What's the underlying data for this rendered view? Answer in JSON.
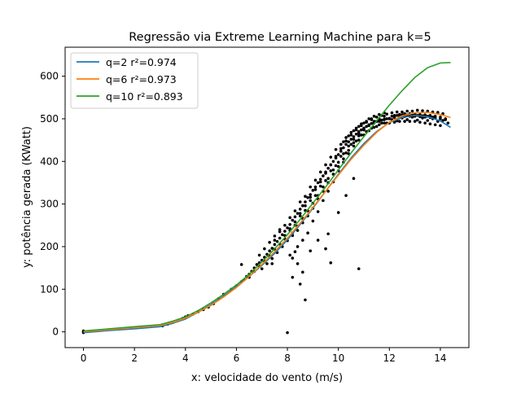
{
  "chart_data": {
    "type": "scatter",
    "title": "Regressão via Extreme Learning Machine para k=5",
    "xlabel": "x: velocidade do vento (m/s)",
    "ylabel": "y: potência gerada (KWatt)",
    "xlim": [
      -0.72,
      15.12
    ],
    "ylim": [
      -37,
      668
    ],
    "x_ticks": [
      0,
      2,
      4,
      6,
      8,
      10,
      12,
      14
    ],
    "y_ticks": [
      0,
      100,
      200,
      300,
      400,
      500,
      600
    ],
    "grid": false,
    "legend_position": "upper-left",
    "colors": {
      "scatter": "#000000",
      "q2": "#1f77b4",
      "q6": "#ff7f0e",
      "q10": "#2ca02c"
    },
    "scatter_points": [
      [
        0.0,
        -2
      ],
      [
        0.0,
        0
      ],
      [
        0.0,
        2
      ],
      [
        3.1,
        14
      ],
      [
        3.3,
        18
      ],
      [
        3.5,
        22
      ],
      [
        3.7,
        27
      ],
      [
        3.9,
        32
      ],
      [
        4.0,
        35
      ],
      [
        4.1,
        38
      ],
      [
        4.3,
        42
      ],
      [
        4.5,
        47
      ],
      [
        4.7,
        52
      ],
      [
        4.9,
        58
      ],
      [
        5.1,
        66
      ],
      [
        5.3,
        78
      ],
      [
        5.5,
        88
      ],
      [
        5.8,
        100
      ],
      [
        6.0,
        108
      ],
      [
        6.2,
        118
      ],
      [
        6.3,
        122
      ],
      [
        6.4,
        130
      ],
      [
        6.5,
        135
      ],
      [
        6.6,
        142
      ],
      [
        6.7,
        150
      ],
      [
        6.8,
        158
      ],
      [
        6.9,
        162
      ],
      [
        7.0,
        168
      ],
      [
        7.1,
        175
      ],
      [
        7.2,
        182
      ],
      [
        7.3,
        190
      ],
      [
        7.4,
        196
      ],
      [
        7.5,
        205
      ],
      [
        7.6,
        212
      ],
      [
        7.7,
        220
      ],
      [
        7.8,
        228
      ],
      [
        7.9,
        236
      ],
      [
        8.0,
        244
      ],
      [
        8.1,
        252
      ],
      [
        8.2,
        262
      ],
      [
        8.3,
        270
      ],
      [
        8.4,
        278
      ],
      [
        8.5,
        288
      ],
      [
        8.6,
        296
      ],
      [
        8.7,
        305
      ],
      [
        8.8,
        315
      ],
      [
        8.9,
        322
      ],
      [
        9.0,
        332
      ],
      [
        9.1,
        340
      ],
      [
        9.2,
        350
      ],
      [
        9.3,
        358
      ],
      [
        9.4,
        366
      ],
      [
        9.5,
        375
      ],
      [
        9.6,
        384
      ],
      [
        9.7,
        392
      ],
      [
        9.8,
        400
      ],
      [
        9.9,
        408
      ],
      [
        10.0,
        416
      ],
      [
        10.1,
        424
      ],
      [
        10.2,
        432
      ],
      [
        10.3,
        440
      ],
      [
        10.4,
        446
      ],
      [
        10.5,
        452
      ],
      [
        10.6,
        458
      ],
      [
        10.7,
        464
      ],
      [
        10.8,
        470
      ],
      [
        10.9,
        474
      ],
      [
        11.0,
        478
      ],
      [
        11.1,
        482
      ],
      [
        11.2,
        486
      ],
      [
        11.3,
        489
      ],
      [
        11.4,
        492
      ],
      [
        11.5,
        494
      ],
      [
        11.6,
        496
      ],
      [
        11.7,
        497
      ],
      [
        11.8,
        499
      ],
      [
        11.9,
        500
      ],
      [
        12.0,
        501
      ],
      [
        12.2,
        503
      ],
      [
        12.4,
        504
      ],
      [
        12.6,
        505
      ],
      [
        12.8,
        506
      ],
      [
        13.0,
        506
      ],
      [
        13.2,
        505
      ],
      [
        13.4,
        504
      ],
      [
        13.6,
        503
      ],
      [
        13.8,
        502
      ],
      [
        14.0,
        500
      ],
      [
        14.2,
        498
      ],
      [
        7.5,
        215
      ],
      [
        7.7,
        240
      ],
      [
        7.9,
        218
      ],
      [
        8.1,
        268
      ],
      [
        8.3,
        250
      ],
      [
        8.5,
        305
      ],
      [
        8.7,
        285
      ],
      [
        8.9,
        340
      ],
      [
        9.1,
        320
      ],
      [
        9.3,
        375
      ],
      [
        9.5,
        355
      ],
      [
        9.7,
        410
      ],
      [
        9.9,
        390
      ],
      [
        10.1,
        440
      ],
      [
        10.3,
        420
      ],
      [
        10.5,
        468
      ],
      [
        10.7,
        448
      ],
      [
        10.9,
        488
      ],
      [
        11.1,
        470
      ],
      [
        11.3,
        500
      ],
      [
        11.5,
        482
      ],
      [
        11.7,
        508
      ],
      [
        11.9,
        490
      ],
      [
        12.1,
        514
      ],
      [
        12.3,
        495
      ],
      [
        12.5,
        516
      ],
      [
        12.7,
        498
      ],
      [
        12.9,
        518
      ],
      [
        13.1,
        497
      ],
      [
        13.3,
        519
      ],
      [
        13.5,
        496
      ],
      [
        13.7,
        516
      ],
      [
        13.9,
        494
      ],
      [
        14.1,
        512
      ],
      [
        14.3,
        490
      ],
      [
        8.4,
        200
      ],
      [
        8.6,
        215
      ],
      [
        8.8,
        232
      ],
      [
        9.0,
        260
      ],
      [
        9.2,
        282
      ],
      [
        9.4,
        308
      ],
      [
        9.6,
        330
      ],
      [
        9.8,
        352
      ],
      [
        10.0,
        378
      ],
      [
        10.2,
        398
      ],
      [
        10.4,
        418
      ],
      [
        10.6,
        436
      ],
      [
        10.8,
        450
      ],
      [
        11.0,
        462
      ],
      [
        11.2,
        472
      ],
      [
        11.4,
        480
      ],
      [
        11.6,
        486
      ],
      [
        11.8,
        490
      ],
      [
        6.9,
        180
      ],
      [
        7.1,
        195
      ],
      [
        7.3,
        210
      ],
      [
        7.5,
        225
      ],
      [
        7.7,
        235
      ],
      [
        7.9,
        250
      ],
      [
        8.1,
        238
      ],
      [
        8.3,
        284
      ],
      [
        8.5,
        272
      ],
      [
        8.7,
        318
      ],
      [
        8.9,
        308
      ],
      [
        9.1,
        356
      ],
      [
        9.3,
        342
      ],
      [
        9.5,
        392
      ],
      [
        9.7,
        378
      ],
      [
        9.9,
        428
      ],
      [
        10.1,
        412
      ],
      [
        10.3,
        456
      ],
      [
        10.5,
        440
      ],
      [
        10.7,
        478
      ],
      [
        10.9,
        462
      ],
      [
        11.1,
        494
      ],
      [
        11.3,
        478
      ],
      [
        11.5,
        504
      ],
      [
        11.7,
        490
      ],
      [
        11.9,
        511
      ],
      [
        12.1,
        498
      ],
      [
        12.3,
        516
      ],
      [
        12.5,
        502
      ],
      [
        12.7,
        518
      ],
      [
        12.9,
        504
      ],
      [
        13.1,
        520
      ],
      [
        13.3,
        502
      ],
      [
        13.5,
        518
      ],
      [
        13.7,
        500
      ],
      [
        13.9,
        515
      ],
      [
        14.1,
        496
      ],
      [
        8.2,
        226
      ],
      [
        8.4,
        238
      ],
      [
        8.6,
        256
      ],
      [
        8.8,
        272
      ],
      [
        9.0,
        290
      ],
      [
        9.2,
        312
      ],
      [
        9.4,
        330
      ],
      [
        9.6,
        350
      ],
      [
        9.8,
        370
      ],
      [
        10.0,
        388
      ],
      [
        10.2,
        406
      ],
      [
        10.4,
        426
      ],
      [
        10.6,
        444
      ],
      [
        10.8,
        460
      ],
      [
        11.0,
        474
      ],
      [
        11.2,
        486
      ],
      [
        11.4,
        494
      ],
      [
        11.6,
        500
      ],
      [
        11.8,
        506
      ],
      [
        6.5,
        128
      ],
      [
        6.7,
        142
      ],
      [
        6.9,
        154
      ],
      [
        7.1,
        166
      ],
      [
        7.3,
        178
      ],
      [
        7.5,
        194
      ],
      [
        7.7,
        206
      ],
      [
        7.9,
        226
      ],
      [
        8.1,
        242
      ],
      [
        8.3,
        258
      ],
      [
        8.5,
        278
      ],
      [
        8.7,
        296
      ],
      [
        8.9,
        316
      ],
      [
        9.1,
        334
      ],
      [
        9.3,
        352
      ],
      [
        9.5,
        372
      ],
      [
        9.7,
        392
      ],
      [
        9.9,
        412
      ],
      [
        10.1,
        430
      ],
      [
        10.3,
        448
      ],
      [
        10.5,
        462
      ],
      [
        10.7,
        474
      ],
      [
        10.9,
        484
      ],
      [
        11.1,
        492
      ],
      [
        11.3,
        498
      ],
      [
        6.2,
        158
      ],
      [
        7.4,
        160
      ],
      [
        8.2,
        173
      ],
      [
        8.4,
        160
      ],
      [
        8.5,
        112
      ],
      [
        8.6,
        140
      ],
      [
        8.2,
        128
      ],
      [
        8.1,
        180
      ],
      [
        8.3,
        188
      ],
      [
        8.7,
        75
      ],
      [
        8.0,
        -2
      ],
      [
        9.5,
        195
      ],
      [
        9.7,
        162
      ],
      [
        10.8,
        148
      ],
      [
        8.9,
        190
      ],
      [
        9.2,
        215
      ],
      [
        9.6,
        230
      ],
      [
        10.0,
        280
      ],
      [
        10.3,
        320
      ],
      [
        10.6,
        360
      ],
      [
        7.0,
        148
      ],
      [
        7.2,
        160
      ],
      [
        7.4,
        172
      ],
      [
        7.6,
        186
      ],
      [
        7.8,
        200
      ],
      [
        8.0,
        214
      ],
      [
        8.2,
        232
      ],
      [
        8.4,
        248
      ],
      [
        8.6,
        266
      ],
      [
        8.8,
        284
      ],
      [
        9.0,
        302
      ],
      [
        9.2,
        320
      ],
      [
        9.4,
        340
      ],
      [
        9.6,
        360
      ],
      [
        9.8,
        380
      ],
      [
        10.0,
        398
      ],
      [
        10.2,
        418
      ],
      [
        10.4,
        436
      ],
      [
        10.6,
        452
      ],
      [
        10.8,
        466
      ],
      [
        11.0,
        476
      ],
      [
        11.2,
        484
      ],
      [
        11.4,
        490
      ],
      [
        11.6,
        494
      ],
      [
        11.8,
        498
      ],
      [
        12.0,
        500
      ],
      [
        12.2,
        508
      ],
      [
        12.4,
        510
      ],
      [
        12.6,
        512
      ],
      [
        12.8,
        512
      ],
      [
        13.0,
        512
      ],
      [
        13.2,
        510
      ],
      [
        13.4,
        509
      ],
      [
        13.6,
        508
      ],
      [
        13.8,
        506
      ],
      [
        14.0,
        504
      ],
      [
        14.2,
        500
      ],
      [
        11.0,
        490
      ],
      [
        11.2,
        500
      ],
      [
        11.4,
        506
      ],
      [
        11.6,
        510
      ],
      [
        11.8,
        514
      ],
      [
        10.2,
        446
      ],
      [
        10.4,
        460
      ],
      [
        10.6,
        472
      ],
      [
        10.8,
        482
      ],
      [
        12.0,
        490
      ],
      [
        12.2,
        492
      ],
      [
        12.4,
        494
      ],
      [
        12.6,
        494
      ],
      [
        12.8,
        494
      ],
      [
        13.0,
        494
      ],
      [
        13.2,
        492
      ],
      [
        13.4,
        490
      ],
      [
        13.6,
        488
      ],
      [
        13.8,
        486
      ],
      [
        14.0,
        484
      ],
      [
        12.1,
        506
      ],
      [
        12.3,
        508
      ],
      [
        12.5,
        509
      ],
      [
        12.7,
        509
      ],
      [
        12.9,
        509
      ],
      [
        13.1,
        508
      ],
      [
        13.3,
        507
      ],
      [
        13.5,
        506
      ],
      [
        13.7,
        504
      ]
    ],
    "series": [
      {
        "name": "q=2 r²=0.974",
        "color": "#1f77b4",
        "x": [
          0.0,
          1.0,
          2.0,
          3.0,
          3.5,
          4.0,
          4.5,
          5.0,
          5.5,
          6.0,
          6.5,
          7.0,
          7.5,
          8.0,
          8.5,
          9.0,
          9.5,
          10.0,
          10.5,
          11.0,
          11.5,
          12.0,
          12.5,
          13.0,
          13.5,
          14.0,
          14.4
        ],
        "y": [
          -2,
          3,
          7,
          12,
          20,
          30,
          46,
          64,
          84,
          106,
          130,
          156,
          184,
          216,
          252,
          290,
          330,
          370,
          408,
          442,
          470,
          491,
          503,
          508,
          505,
          495,
          480
        ]
      },
      {
        "name": "q=6 r²=0.973",
        "color": "#ff7f0e",
        "x": [
          0.0,
          1.0,
          2.0,
          3.0,
          3.5,
          4.0,
          4.5,
          5.0,
          5.5,
          6.0,
          6.5,
          7.0,
          7.5,
          8.0,
          8.5,
          9.0,
          9.5,
          10.0,
          10.5,
          11.0,
          11.5,
          12.0,
          12.5,
          13.0,
          13.5,
          14.0,
          14.4
        ],
        "y": [
          0,
          5,
          10,
          15,
          22,
          32,
          46,
          62,
          82,
          104,
          130,
          158,
          188,
          220,
          255,
          292,
          330,
          368,
          405,
          438,
          468,
          492,
          507,
          514,
          515,
          510,
          503
        ]
      },
      {
        "name": "q=10 r²=0.893",
        "color": "#2ca02c",
        "x": [
          0.0,
          1.0,
          2.0,
          3.0,
          3.5,
          4.0,
          4.5,
          5.0,
          5.5,
          6.0,
          6.5,
          7.0,
          7.5,
          8.0,
          8.5,
          9.0,
          9.5,
          10.0,
          10.5,
          11.0,
          11.5,
          12.0,
          12.5,
          13.0,
          13.5,
          14.0,
          14.4
        ],
        "y": [
          2,
          7,
          12,
          17,
          25,
          35,
          50,
          68,
          88,
          110,
          135,
          164,
          195,
          228,
          264,
          302,
          340,
          380,
          420,
          458,
          495,
          532,
          566,
          597,
          620,
          631,
          632
        ]
      }
    ]
  }
}
